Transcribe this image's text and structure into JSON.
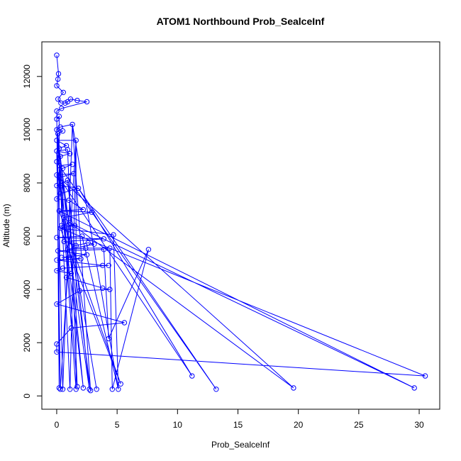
{
  "chart_data": {
    "type": "line",
    "title": "ATOM1 Northbound Prob_SealceInf",
    "xlabel": "Prob_SealceInf",
    "ylabel": "Altitude (m)",
    "xlim": [
      -1.23,
      31.7
    ],
    "ylim": [
      -500,
      13300
    ],
    "xticks": [
      0,
      5,
      10,
      15,
      20,
      25,
      30
    ],
    "yticks": [
      0,
      2000,
      4000,
      6000,
      8000,
      10000,
      12000
    ],
    "grid": false,
    "legend": "none",
    "line_color": "#0000ff",
    "marker": "open-circle",
    "series": [
      {
        "points": [
          [
            0.0,
            12800
          ],
          [
            0.15,
            12100
          ],
          [
            0.1,
            11900
          ],
          [
            0.0,
            11650
          ],
          [
            0.55,
            11400
          ],
          [
            0.1,
            11150
          ],
          [
            0.35,
            11000
          ],
          [
            0.7,
            11000
          ],
          [
            0.9,
            11050
          ],
          [
            1.15,
            11150
          ],
          [
            1.7,
            11100
          ],
          [
            2.5,
            11050
          ],
          [
            0.4,
            10800
          ],
          [
            0.0,
            10700
          ],
          [
            0.2,
            10500
          ],
          [
            0.0,
            10400
          ],
          [
            1.3,
            10200
          ],
          [
            0.3,
            10100
          ],
          [
            0.0,
            10000
          ],
          [
            0.5,
            9950
          ],
          [
            0.1,
            9850
          ],
          [
            1.6,
            9600
          ],
          [
            0.0,
            9600
          ],
          [
            0.8,
            9400
          ],
          [
            0.2,
            9300
          ],
          [
            0.9,
            9250
          ],
          [
            0.0,
            9200
          ],
          [
            1.1,
            9100
          ],
          [
            0.3,
            9000
          ],
          [
            0.0,
            8800
          ],
          [
            0.2,
            8650
          ],
          [
            1.3,
            8700
          ],
          [
            0.5,
            8550
          ],
          [
            0.0,
            8300
          ],
          [
            1.4,
            8350
          ],
          [
            0.2,
            8200
          ],
          [
            0.9,
            8100
          ],
          [
            0.0,
            7900
          ],
          [
            0.4,
            7900
          ],
          [
            1.8,
            7800
          ],
          [
            0.3,
            7600
          ],
          [
            0.0,
            7400
          ],
          [
            1.0,
            7350
          ],
          [
            2.2,
            7000
          ],
          [
            0.2,
            6950
          ],
          [
            2.9,
            6900
          ],
          [
            0.6,
            6700
          ],
          [
            1.1,
            6500
          ],
          [
            0.4,
            6400
          ],
          [
            1.5,
            6400
          ],
          [
            0.3,
            6300
          ],
          [
            4.7,
            6050
          ],
          [
            2.1,
            6000
          ],
          [
            0.0,
            5950
          ],
          [
            3.9,
            5900
          ],
          [
            0.6,
            5800
          ],
          [
            1.6,
            5650
          ],
          [
            2.6,
            5750
          ],
          [
            3.1,
            5700
          ],
          [
            0.9,
            5500
          ],
          [
            2.4,
            5550
          ],
          [
            4.4,
            5550
          ],
          [
            7.6,
            5500
          ],
          [
            3.9,
            5500
          ],
          [
            0.1,
            5450
          ],
          [
            2.5,
            5300
          ],
          [
            0.4,
            5200
          ],
          [
            1.0,
            5200
          ],
          [
            2.0,
            5150
          ],
          [
            0.0,
            5100
          ],
          [
            3.8,
            4900
          ],
          [
            4.3,
            4900
          ],
          [
            0.5,
            4800
          ],
          [
            0.0,
            4700
          ],
          [
            1.2,
            4600
          ],
          [
            0.8,
            4450
          ],
          [
            3.8,
            4050
          ],
          [
            4.4,
            4000
          ],
          [
            1.9,
            3950
          ],
          [
            0.0,
            3450
          ],
          [
            5.6,
            2750
          ],
          [
            1.2,
            2550
          ],
          [
            4.3,
            2150
          ],
          [
            0.0,
            1950
          ],
          [
            0.0,
            1650
          ],
          [
            30.5,
            750
          ],
          [
            11.2,
            750
          ],
          [
            5.3,
            450
          ],
          [
            1.7,
            350
          ],
          [
            2.2,
            300
          ],
          [
            0.2,
            300
          ],
          [
            19.6,
            300
          ],
          [
            29.6,
            300
          ],
          [
            13.2,
            250
          ],
          [
            3.3,
            250
          ],
          [
            5.1,
            250
          ],
          [
            1.1,
            250
          ],
          [
            4.6,
            250
          ],
          [
            2.7,
            250
          ],
          [
            0.3,
            250
          ],
          [
            1.6,
            250
          ],
          [
            2.8,
            200
          ],
          [
            0.5,
            250
          ]
        ],
        "path": [
          0,
          1,
          2,
          3,
          4,
          5,
          6,
          7,
          8,
          9,
          10,
          11,
          12,
          13,
          90,
          14,
          15,
          102,
          16,
          17,
          18,
          19,
          20,
          96,
          21,
          22,
          23,
          24,
          88,
          25,
          26,
          27,
          28,
          89,
          29,
          30,
          31,
          32,
          33,
          34,
          35,
          98,
          36,
          37,
          38,
          39,
          40,
          41,
          42,
          43,
          44,
          45,
          46,
          47,
          48,
          49,
          50,
          51,
          95,
          52,
          53,
          54,
          55,
          56,
          57,
          58,
          59,
          60,
          61,
          97,
          62,
          82,
          63,
          64,
          65,
          66,
          67,
          68,
          69,
          70,
          71,
          72,
          73,
          74,
          75,
          76,
          77,
          78,
          79,
          80,
          81,
          83,
          84,
          85,
          50,
          87,
          44,
          92,
          47,
          91,
          35,
          86,
          39,
          93,
          30,
          94,
          26,
          99,
          21,
          100,
          18,
          101,
          16,
          95
        ]
      }
    ]
  }
}
